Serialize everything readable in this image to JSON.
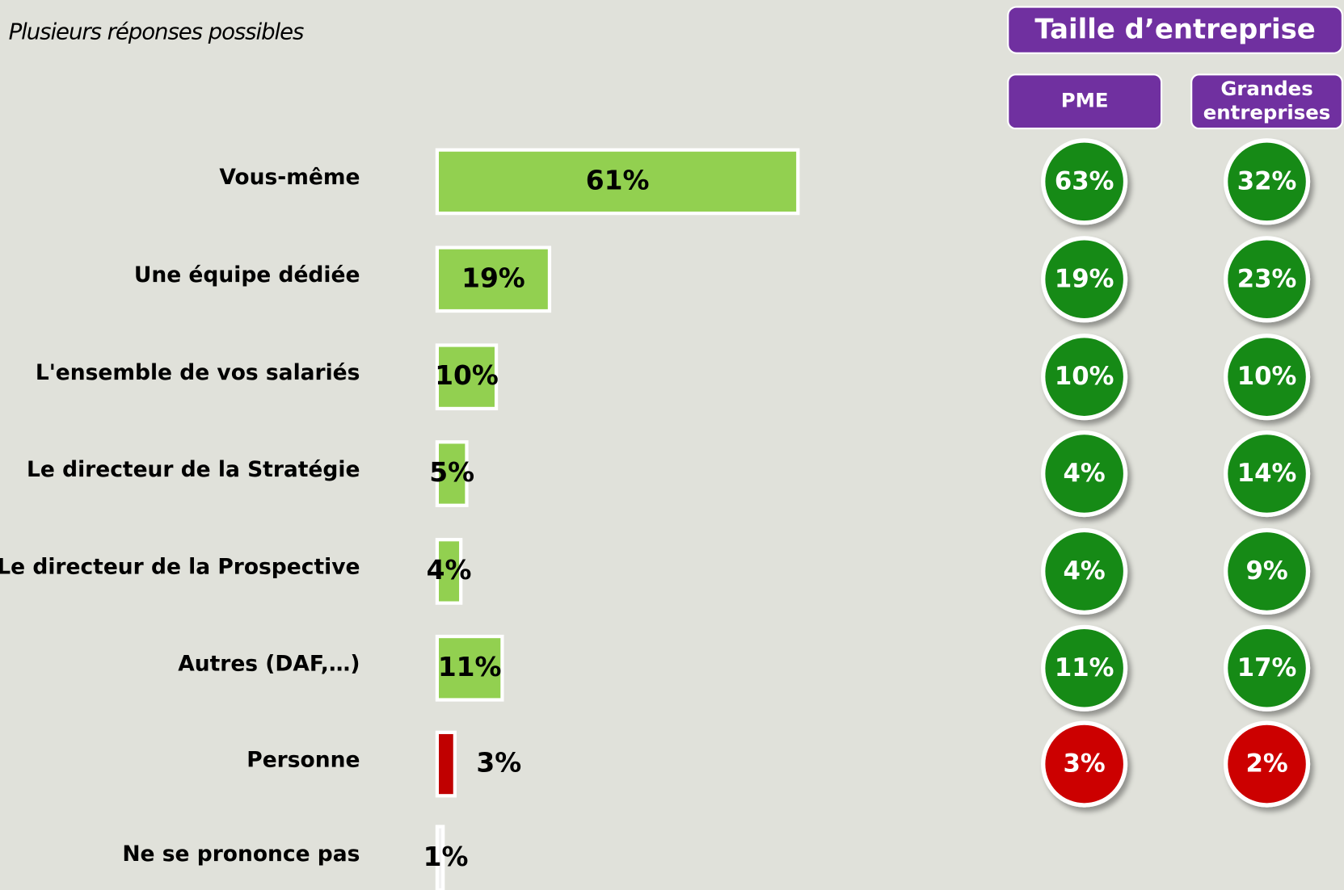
{
  "chart_data": {
    "type": "bar",
    "orientation": "horizontal",
    "subtitle": "Plusieurs réponses possibles",
    "categories": [
      "Vous-même",
      "Une équipe dédiée",
      "L'ensemble de vos salariés",
      "Le directeur de la Stratégie",
      "Le directeur de la Prospective",
      "Autres (DAF,…)",
      "Personne",
      "Ne se prononce pas"
    ],
    "values": [
      61,
      19,
      10,
      5,
      4,
      11,
      3,
      1
    ],
    "value_labels": [
      "61%",
      "19%",
      "10%",
      "5%",
      "4%",
      "11%",
      "3%",
      "1%"
    ],
    "colors": [
      "#92d050",
      "#92d050",
      "#92d050",
      "#92d050",
      "#92d050",
      "#92d050",
      "#c00000",
      "#f2f2f2"
    ],
    "breakdown": {
      "title": "Taille d’entreprise",
      "columns": [
        {
          "name": "PME",
          "values": [
            63,
            19,
            10,
            4,
            4,
            11,
            3,
            null
          ],
          "value_labels": [
            "63%",
            "19%",
            "10%",
            "4%",
            "4%",
            "11%",
            "3%",
            null
          ],
          "colors": [
            "#138a13",
            "#138a13",
            "#138a13",
            "#138a13",
            "#138a13",
            "#138a13",
            "#cc0000",
            null
          ]
        },
        {
          "name": "Grandes entreprises",
          "values": [
            32,
            23,
            10,
            14,
            9,
            17,
            2,
            null
          ],
          "value_labels": [
            "32%",
            "23%",
            "10%",
            "14%",
            "9%",
            "17%",
            "2%",
            null
          ],
          "colors": [
            "#138a13",
            "#138a13",
            "#138a13",
            "#138a13",
            "#138a13",
            "#138a13",
            "#cc0000",
            null
          ]
        }
      ]
    }
  }
}
